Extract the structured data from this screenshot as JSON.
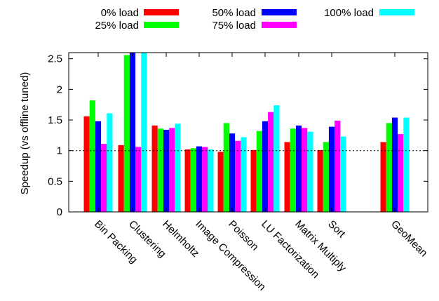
{
  "chart_data": {
    "type": "bar",
    "title": "",
    "xlabel": "",
    "ylabel": "Speedup (vs offline tuned)",
    "ylim": [
      0,
      2.6
    ],
    "yticks": [
      0,
      0.5,
      1,
      1.5,
      2,
      2.5
    ],
    "ytick_labels": [
      "0",
      "0.5",
      "1",
      "1.5",
      "2",
      "2.5"
    ],
    "reference_line": 1,
    "grid": false,
    "legend_position": "top",
    "categories": [
      "Bin Packing",
      "Clustering",
      "Helmholtz",
      "Image Compression",
      "Poisson",
      "LU Factorization",
      "Matrix Multiply",
      "Sort",
      "GeoMean"
    ],
    "series": [
      {
        "name": "0% load",
        "color": "#ff0000",
        "values": [
          1.56,
          1.09,
          1.41,
          1.02,
          0.98,
          1.01,
          1.14,
          1.01,
          1.14
        ]
      },
      {
        "name": "25% load",
        "color": "#00ff00",
        "values": [
          1.82,
          2.56,
          1.36,
          1.04,
          1.45,
          1.32,
          1.36,
          1.14,
          1.45
        ]
      },
      {
        "name": "50% load",
        "color": "#0000ff",
        "values": [
          1.48,
          2.6,
          1.34,
          1.07,
          1.28,
          1.48,
          1.41,
          1.39,
          1.54
        ]
      },
      {
        "name": "75% load",
        "color": "#ff00ff",
        "values": [
          1.11,
          1.06,
          1.37,
          1.06,
          1.16,
          1.63,
          1.37,
          1.49,
          1.27
        ]
      },
      {
        "name": "100% load",
        "color": "#00ffff",
        "values": [
          1.61,
          2.6,
          1.44,
          1.02,
          1.22,
          1.74,
          1.31,
          1.23,
          1.54
        ]
      }
    ]
  }
}
